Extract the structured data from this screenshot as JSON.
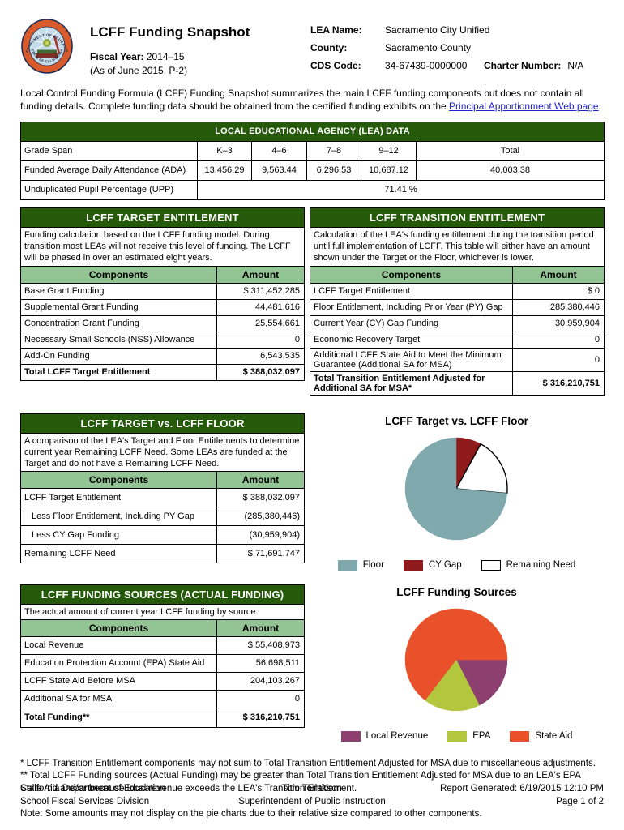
{
  "header": {
    "title": "LCFF Funding Snapshot",
    "fiscal_year_label": "Fiscal Year:",
    "fiscal_year": "2014–15",
    "as_of": "(As of June 2015, P-2)",
    "lea_name_label": "LEA Name:",
    "lea_name": "Sacramento City Unified",
    "county_label": "County:",
    "county": "Sacramento County",
    "cds_code_label": "CDS Code:",
    "cds_code": "34-67439-0000000",
    "charter_number_label": "Charter Number:",
    "charter_number": "N/A",
    "seal_top_text": "DEPARTMENT OF EDUCATION",
    "seal_bottom_text": "STATE OF CALIFORNIA"
  },
  "intro": {
    "text_before_link": "Local Control Funding Formula (LCFF) Funding Snapshot summarizes the main LCFF funding components but does not contain all funding details. Complete funding data should be obtained from the certified funding exhibits on the ",
    "link_text": "Principal Apportionment Web page",
    "text_after_link": "."
  },
  "lea_table": {
    "title": "LOCAL EDUCATIONAL AGENCY (LEA) DATA",
    "grade_span_label": "Grade Span",
    "grade_spans": [
      "K–3",
      "4–6",
      "7–8",
      "9–12",
      "Total"
    ],
    "ada_label": "Funded Average Daily Attendance (ADA)",
    "ada_values": [
      "13,456.29",
      "9,563.44",
      "6,296.53",
      "10,687.12",
      "40,003.38"
    ],
    "upp_label": "Unduplicated Pupil Percentage (UPP)",
    "upp_value": "71.41 %"
  },
  "target_table": {
    "title": "LCFF TARGET ENTITLEMENT",
    "description": "Funding calculation based on the LCFF funding model. During transition most LEAs will not receive this level of funding. The LCFF will be phased in over an estimated eight years.",
    "columns": {
      "components": "Components",
      "amount": "Amount"
    },
    "rows": [
      {
        "label": "Base Grant Funding",
        "amount": "$ 311,452,285"
      },
      {
        "label": "Supplemental Grant Funding",
        "amount": "44,481,616"
      },
      {
        "label": "Concentration Grant Funding",
        "amount": "25,554,661"
      },
      {
        "label": "Necessary Small Schools (NSS) Allowance",
        "amount": "0"
      },
      {
        "label": "Add-On Funding",
        "amount": "6,543,535"
      }
    ],
    "total_row": {
      "label": "Total LCFF Target Entitlement",
      "amount": "$ 388,032,097"
    }
  },
  "transition_table": {
    "title": "LCFF TRANSITION ENTITLEMENT",
    "description": "Calculation of the LEA's funding entitlement during the transition period until full implementation of LCFF. This table will either have an amount shown under the Target or the Floor, whichever is lower.",
    "columns": {
      "components": "Components",
      "amount": "Amount"
    },
    "rows": [
      {
        "label": "LCFF Target Entitlement",
        "amount": "$ 0"
      },
      {
        "label": "Floor Entitlement, Including Prior Year (PY) Gap",
        "amount": "285,380,446"
      },
      {
        "label": "Current Year (CY) Gap Funding",
        "amount": "30,959,904"
      },
      {
        "label": "Economic Recovery Target",
        "amount": "0"
      },
      {
        "label": "Additional LCFF State Aid to Meet the Minimum Guarantee (Additional SA for MSA)",
        "amount": "0"
      }
    ],
    "total_row": {
      "label": "Total Transition Entitlement Adjusted for Additional SA for MSA*",
      "amount": "$ 316,210,751"
    }
  },
  "target_vs_floor_table": {
    "title": "LCFF TARGET vs. LCFF FLOOR",
    "description": "A comparison of the LEA's Target and Floor Entitlements to determine current year Remaining LCFF Need. Some LEAs are funded at the Target and do not have a Remaining LCFF Need.",
    "columns": {
      "components": "Components",
      "amount": "Amount"
    },
    "rows": [
      {
        "label": "LCFF Target Entitlement",
        "amount": "$ 388,032,097"
      },
      {
        "label": "Less Floor Entitlement, Including PY Gap",
        "amount": "(285,380,446)"
      },
      {
        "label": "Less CY Gap Funding",
        "amount": "(30,959,904)"
      },
      {
        "label": "Remaining LCFF Need",
        "amount": "$ 71,691,747"
      }
    ]
  },
  "funding_sources_table": {
    "title": "LCFF FUNDING SOURCES (ACTUAL FUNDING)",
    "description": "The actual amount of current year LCFF funding by source.",
    "columns": {
      "components": "Components",
      "amount": "Amount"
    },
    "rows": [
      {
        "label": "Local Revenue",
        "amount": "$ 55,408,973"
      },
      {
        "label": "Education Protection Account (EPA) State Aid",
        "amount": "56,698,511"
      },
      {
        "label": "LCFF State Aid Before MSA",
        "amount": "204,103,267"
      },
      {
        "label": "Additional SA for MSA",
        "amount": "0"
      }
    ],
    "total_row": {
      "label": "Total Funding**",
      "amount": "$ 316,210,751"
    }
  },
  "chart_data": [
    {
      "type": "pie",
      "title": "LCFF Target vs. LCFF Floor",
      "start_angle_deg": 0,
      "clockwise": true,
      "legend_position": "bottom",
      "slices": [
        {
          "label": "CY Gap",
          "value": 30959904,
          "pct": 7.98,
          "color": "#8E1A1C"
        },
        {
          "label": "Remaining Need",
          "value": 71691747,
          "pct": 18.48,
          "color": "#FFFFFF",
          "stroke": "#000000"
        },
        {
          "label": "Floor",
          "value": 285380446,
          "pct": 73.54,
          "color": "#7FA9AD"
        }
      ],
      "legend": [
        {
          "label": "Floor",
          "color": "#7FA9AD"
        },
        {
          "label": "CY Gap",
          "color": "#8E1A1C"
        },
        {
          "label": "Remaining Need",
          "color": "#FFFFFF",
          "stroke": "#000000"
        }
      ]
    },
    {
      "type": "pie",
      "title": "LCFF Funding Sources",
      "start_angle_deg": 90,
      "clockwise": true,
      "legend_position": "bottom",
      "slices": [
        {
          "label": "Local Revenue",
          "value": 55408973,
          "pct": 17.52,
          "color": "#8D4070"
        },
        {
          "label": "EPA",
          "value": 56698511,
          "pct": 17.93,
          "color": "#B2C73D"
        },
        {
          "label": "State Aid",
          "value": 204103267,
          "pct": 64.55,
          "color": "#E8512A"
        }
      ],
      "legend": [
        {
          "label": "Local Revenue",
          "color": "#8D4070"
        },
        {
          "label": "EPA",
          "color": "#B2C73D"
        },
        {
          "label": "State Aid",
          "color": "#E8512A"
        }
      ]
    }
  ],
  "footnotes": {
    "star1": "* LCFF Transition Entitlement components may not sum to Total Transition Entitlement Adjusted for MSA due to miscellaneous adjustments.",
    "star2": "** Total LCFF Funding sources (Actual Funding) may be greater than Total Transition Entitlement Adjusted for MSA due to an LEA's EPA State Aid and/or because local revenue exceeds the LEA's Transition Entitlement.",
    "note": "Note: Some amounts may not display on the pie charts due to their relative size compared to other components."
  },
  "footer": {
    "left_line1": "California Department of Education",
    "left_line2": "School Fiscal Services Division",
    "center_line1": "Tom Torlakson",
    "center_line2": "Superintendent of Public Instruction",
    "right_line1": "Report Generated: 6/19/2015 12:10 PM",
    "right_line2": "Page 1 of 2"
  }
}
